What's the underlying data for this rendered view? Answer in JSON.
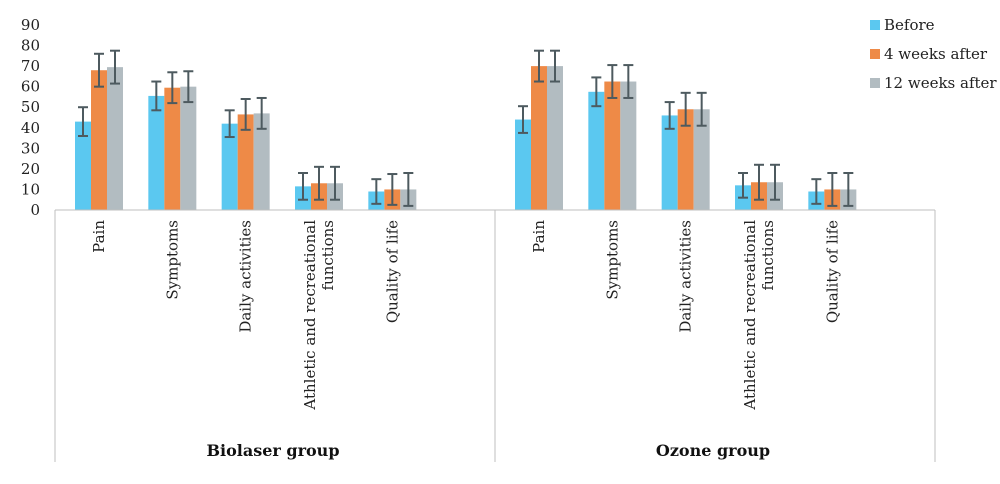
{
  "chart_data": {
    "type": "bar",
    "title": "",
    "xlabel": "",
    "ylabel": "",
    "ylim": [
      0,
      90
    ],
    "yticks": [
      0,
      10,
      20,
      30,
      40,
      50,
      60,
      70,
      80,
      90
    ],
    "grid": false,
    "legend_position": "top-right",
    "categories": [
      "Pain",
      "Symptoms",
      "Daily activities",
      "Athletic and recreational functions",
      "Quality of life"
    ],
    "category_label_lines": [
      [
        "Pain"
      ],
      [
        "Symptoms"
      ],
      [
        "Daily activities"
      ],
      [
        "Athletic and recreational",
        "functions"
      ],
      [
        "Quality of life"
      ]
    ],
    "groups": [
      {
        "name": "Biolaser group",
        "series": [
          {
            "name": "Before",
            "color": "#5bc8f0",
            "values": [
              43,
              55.5,
              42,
              11.5,
              9
            ],
            "errors": [
              7,
              7,
              6.5,
              6.5,
              6
            ]
          },
          {
            "name": "4 weeks after",
            "color": "#ee8a47",
            "values": [
              68,
              59.5,
              46.5,
              13,
              10
            ],
            "errors": [
              8,
              7.5,
              7.5,
              8,
              7.5
            ]
          },
          {
            "name": "12 weeks after",
            "color": "#b2bcc1",
            "values": [
              69.5,
              60,
              47,
              13,
              10
            ],
            "errors": [
              8,
              7.5,
              7.5,
              8,
              8
            ]
          }
        ]
      },
      {
        "name": "Ozone group",
        "series": [
          {
            "name": "Before",
            "color": "#5bc8f0",
            "values": [
              44,
              57.5,
              46,
              12,
              9
            ],
            "errors": [
              6.5,
              7,
              6.5,
              6,
              6
            ]
          },
          {
            "name": "4 weeks after",
            "color": "#ee8a47",
            "values": [
              70,
              62.5,
              49,
              13.5,
              10
            ],
            "errors": [
              7.5,
              8,
              8,
              8.5,
              8
            ]
          },
          {
            "name": "12 weeks after",
            "color": "#b2bcc1",
            "values": [
              70,
              62.5,
              49,
              13.5,
              10
            ],
            "errors": [
              7.5,
              8,
              8,
              8.5,
              8
            ]
          }
        ]
      }
    ],
    "legend": [
      {
        "name": "Before",
        "color": "#5bc8f0"
      },
      {
        "name": "4 weeks after",
        "color": "#ee8a47"
      },
      {
        "name": "12 weeks after",
        "color": "#b2bcc1"
      }
    ]
  }
}
